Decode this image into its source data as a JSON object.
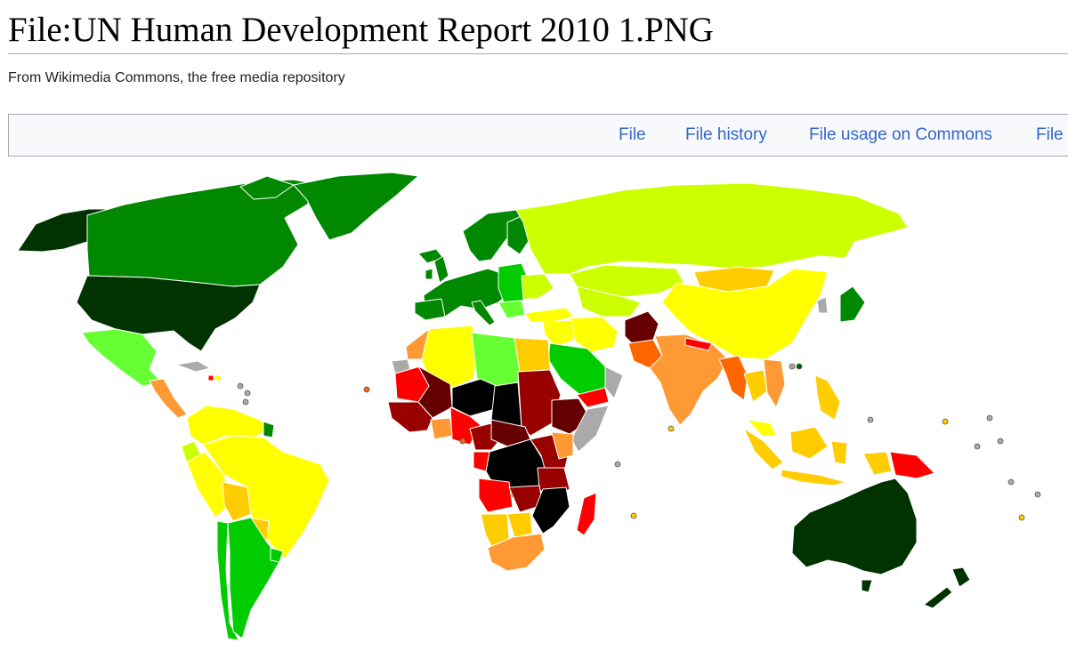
{
  "page": {
    "title": "File:UN Human Development Report 2010 1.PNG",
    "tagline": "From Wikimedia Commons, the free media repository"
  },
  "tabs": [
    {
      "label": "File"
    },
    {
      "label": "File history"
    },
    {
      "label": "File usage on Commons"
    },
    {
      "label": "File"
    }
  ],
  "map": {
    "subject": "UN Human Development Report 2010 world map",
    "colors": {
      "very_high_dark": "#003300",
      "very_high": "#006600",
      "high_dark": "#008800",
      "high": "#00cc00",
      "high_light": "#66ff33",
      "medium_high": "#ccff00",
      "medium": "#ffff00",
      "medium_low": "#ffcc00",
      "low_high": "#ff9933",
      "low": "#ff6600",
      "lower": "#ff0000",
      "lowest_a": "#990000",
      "lowest_b": "#660000",
      "lowest_c": "#000000",
      "no_data": "#aaaaaa",
      "ocean": "#ffffff",
      "border": "#ffffff"
    }
  }
}
